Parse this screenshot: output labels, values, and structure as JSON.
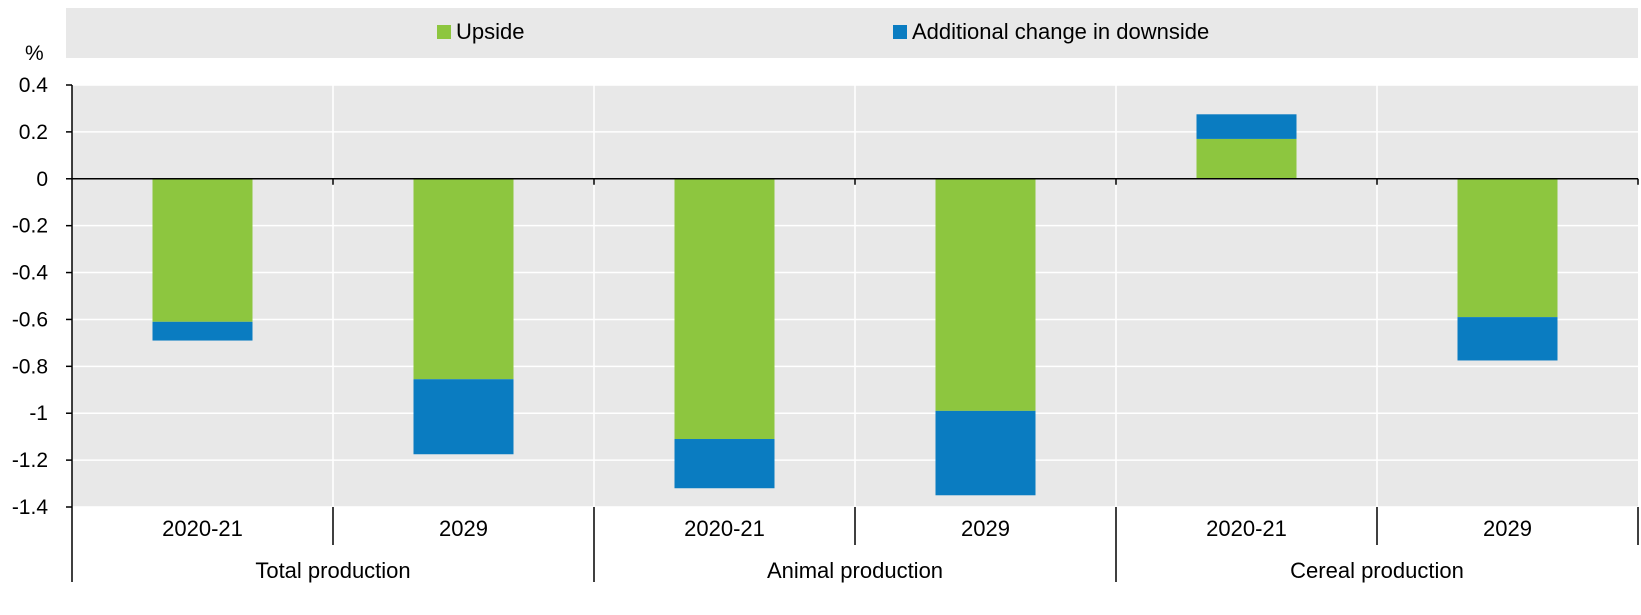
{
  "chart_data": {
    "type": "bar",
    "stacked": true,
    "y_unit_label": "%",
    "ylim": [
      -1.4,
      0.4
    ],
    "yticks": [
      0.4,
      0.2,
      0,
      -0.2,
      -0.4,
      -0.6,
      -0.8,
      -1,
      -1.2,
      -1.4
    ],
    "ytick_labels": [
      "0.4",
      "0.2",
      "0",
      "-0.2",
      "-0.4",
      "-0.6",
      "-0.8",
      "-1",
      "-1.2",
      "-1.4"
    ],
    "grid": true,
    "legend_position": "top",
    "groups": [
      "Total production",
      "Animal production",
      "Cereal production"
    ],
    "categories": [
      "2020-21",
      "2029",
      "2020-21",
      "2029",
      "2020-21",
      "2029"
    ],
    "series": [
      {
        "name": "Upside",
        "color": "#8dc63f",
        "values": [
          -0.61,
          -0.855,
          -1.11,
          -0.99,
          0.17,
          -0.59
        ]
      },
      {
        "name": "Additional change in downside",
        "color": "#0a7cc1",
        "values": [
          -0.08,
          -0.32,
          -0.21,
          -0.36,
          0.105,
          -0.185
        ]
      }
    ]
  },
  "colors": {
    "plot_background": "#e8e8e8",
    "grid": "#ffffff",
    "axis": "#000000"
  }
}
